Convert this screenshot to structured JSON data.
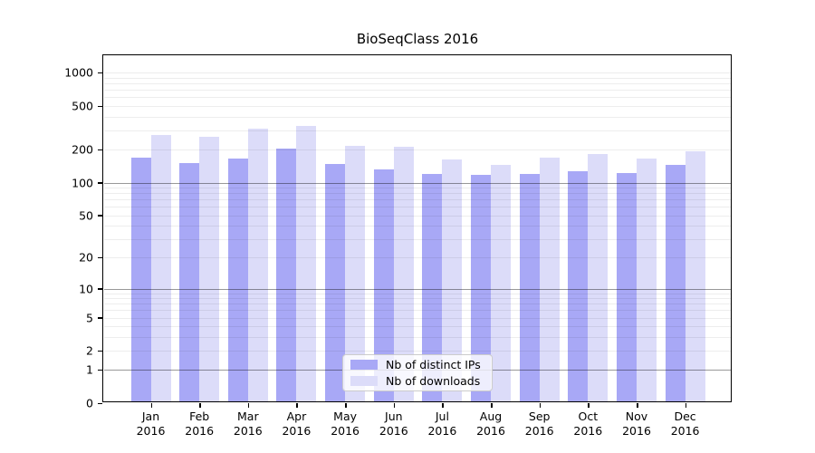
{
  "title": "BioSeqClass 2016",
  "chart_data": {
    "type": "bar",
    "title": "BioSeqClass 2016",
    "categories": [
      "Jan",
      "Feb",
      "Mar",
      "Apr",
      "May",
      "Jun",
      "Jul",
      "Aug",
      "Sep",
      "Oct",
      "Nov",
      "Dec"
    ],
    "category_year": "2016",
    "series": [
      {
        "name": "Nb of distinct IPs",
        "color": "#a8a8f6",
        "values": [
          170,
          151,
          166,
          204,
          147,
          133,
          120,
          118,
          120,
          128,
          122,
          145
        ]
      },
      {
        "name": "Nb of downloads",
        "color": "#dcdcf9",
        "values": [
          270,
          263,
          313,
          328,
          215,
          212,
          164,
          144,
          169,
          181,
          167,
          193
        ]
      }
    ],
    "yscale": "log10(1+x)",
    "ylim": [
      0,
      1480
    ],
    "y_tick_labels": [
      1000,
      500,
      200,
      100,
      50,
      20,
      10,
      5,
      2,
      1,
      0
    ],
    "grid_major": [
      1,
      10,
      100
    ],
    "grid_minor": [
      2,
      3,
      4,
      5,
      6,
      7,
      8,
      9,
      20,
      30,
      40,
      50,
      60,
      70,
      80,
      90,
      200,
      300,
      400,
      500,
      600,
      700,
      800,
      900,
      1000
    ],
    "grid_major_color": "#999999",
    "grid_minor_color": "#ececec",
    "axis_color": "#000000",
    "legend": {
      "position": "inside-bottom-center",
      "labels": [
        "Nb of distinct IPs",
        "Nb of downloads"
      ]
    }
  }
}
